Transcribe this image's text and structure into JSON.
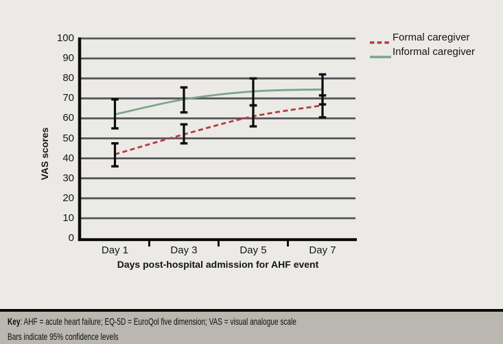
{
  "chart_data": {
    "type": "line",
    "categories": [
      "Day 1",
      "Day 3",
      "Day 5",
      "Day 7"
    ],
    "series": [
      {
        "name": "Formal caregiver",
        "style": "dashed",
        "color": "#b43b42",
        "values": [
          42,
          52,
          61,
          66.5
        ],
        "ci_low": [
          36,
          47.5,
          56,
          60.5
        ],
        "ci_high": [
          47.5,
          57,
          66.5,
          71.5
        ]
      },
      {
        "name": "Informal caregiver",
        "style": "solid",
        "color": "#7da489",
        "values": [
          62,
          69.5,
          73.5,
          74.5
        ],
        "ci_low": [
          55,
          63,
          66.5,
          67
        ],
        "ci_high": [
          69.5,
          75.5,
          80,
          82
        ]
      }
    ],
    "title": "",
    "xlabel": "Days post-hospital admission for AHF event",
    "ylabel": "VAS scores",
    "ylim": [
      0,
      100
    ],
    "yticks": [
      0,
      10,
      20,
      30,
      40,
      50,
      60,
      70,
      80,
      90,
      100
    ],
    "grid": "horizontal",
    "gridline_color": "#54555a",
    "axis_color": "#0c0c0c",
    "error_bar_color": "#0c0c0c",
    "legend_position": "top-right",
    "error_bars_note": "Bars indicate 95% confidence levels"
  },
  "legend": {
    "items": [
      {
        "label": "Formal caregiver"
      },
      {
        "label": "Informal caregiver"
      }
    ]
  },
  "footer": {
    "background": "#bab6b0",
    "key_label": "Key",
    "key_text": ": AHF = acute heart failure; EQ-5D = EuroQol five dimension; VAS = visual analogue scale",
    "note": "Bars indicate 95% confidence levels"
  },
  "page": {
    "background": "#ebeae6"
  }
}
